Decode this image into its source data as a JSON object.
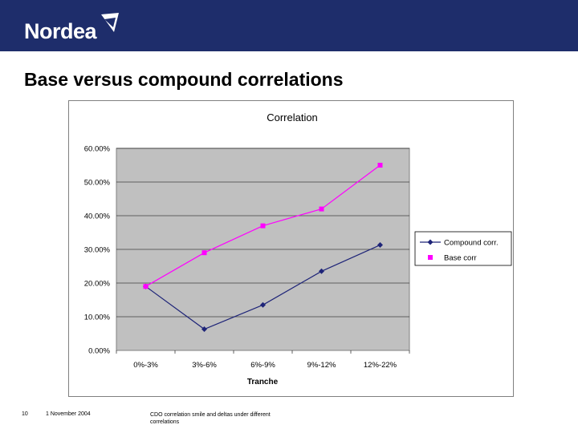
{
  "header": {
    "logo_text": "Nordea",
    "logo_icon": "nordea-sail-icon",
    "background_color": "#1e2d6b"
  },
  "slide": {
    "title": "Base versus compound correlations"
  },
  "footer": {
    "page_number": "10",
    "date": "1 November 2004",
    "description": "CDO correlation smile and deltas under different correlations"
  },
  "chart_data": {
    "type": "line",
    "title": "Correlation",
    "xlabel": "Tranche",
    "ylabel": "",
    "categories": [
      "0%-3%",
      "3%-6%",
      "6%-9%",
      "9%-12%",
      "12%-22%"
    ],
    "ylim": [
      0,
      0.6
    ],
    "y_ticks": [
      "0.00%",
      "10.00%",
      "20.00%",
      "30.00%",
      "40.00%",
      "50.00%",
      "60.00%"
    ],
    "grid": true,
    "plot_background": "#c0c0c0",
    "legend_position": "right",
    "series": [
      {
        "name": "Compound corr.",
        "values": [
          0.19,
          0.063,
          0.135,
          0.235,
          0.313
        ],
        "color": "#1e2478",
        "marker": "diamond"
      },
      {
        "name": "Base corr",
        "values": [
          0.19,
          0.29,
          0.37,
          0.42,
          0.55
        ],
        "color": "#ff00ff",
        "marker": "square"
      }
    ]
  }
}
